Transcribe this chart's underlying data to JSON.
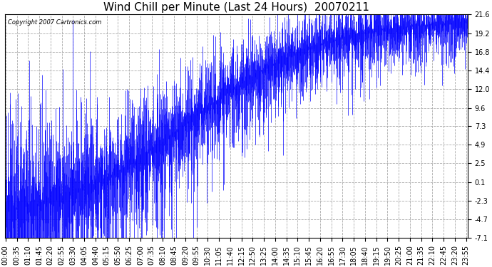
{
  "title": "Wind Chill per Minute (Last 24 Hours)  20070211",
  "copyright_text": "Copyright 2007 Cartronics.com",
  "bar_color": "#0000FF",
  "background_color": "#FFFFFF",
  "plot_bg_color": "#FFFFFF",
  "ylim": [
    -7.1,
    21.6
  ],
  "yticks": [
    -7.1,
    -4.7,
    -2.3,
    0.1,
    2.5,
    4.9,
    7.3,
    9.6,
    12.0,
    14.4,
    16.8,
    19.2,
    21.6
  ],
  "ylabel_values": [
    "-7.1",
    "-4.7",
    "-2.3",
    "0.1",
    "2.5",
    "4.9",
    "7.3",
    "9.6",
    "12.0",
    "14.4",
    "16.8",
    "19.2",
    "21.6"
  ],
  "title_fontsize": 11,
  "grid_color": "#AAAAAA",
  "grid_linestyle": "--",
  "tick_label_fontsize": 7,
  "minutes_in_day": 1440,
  "x_tick_interval": 35
}
